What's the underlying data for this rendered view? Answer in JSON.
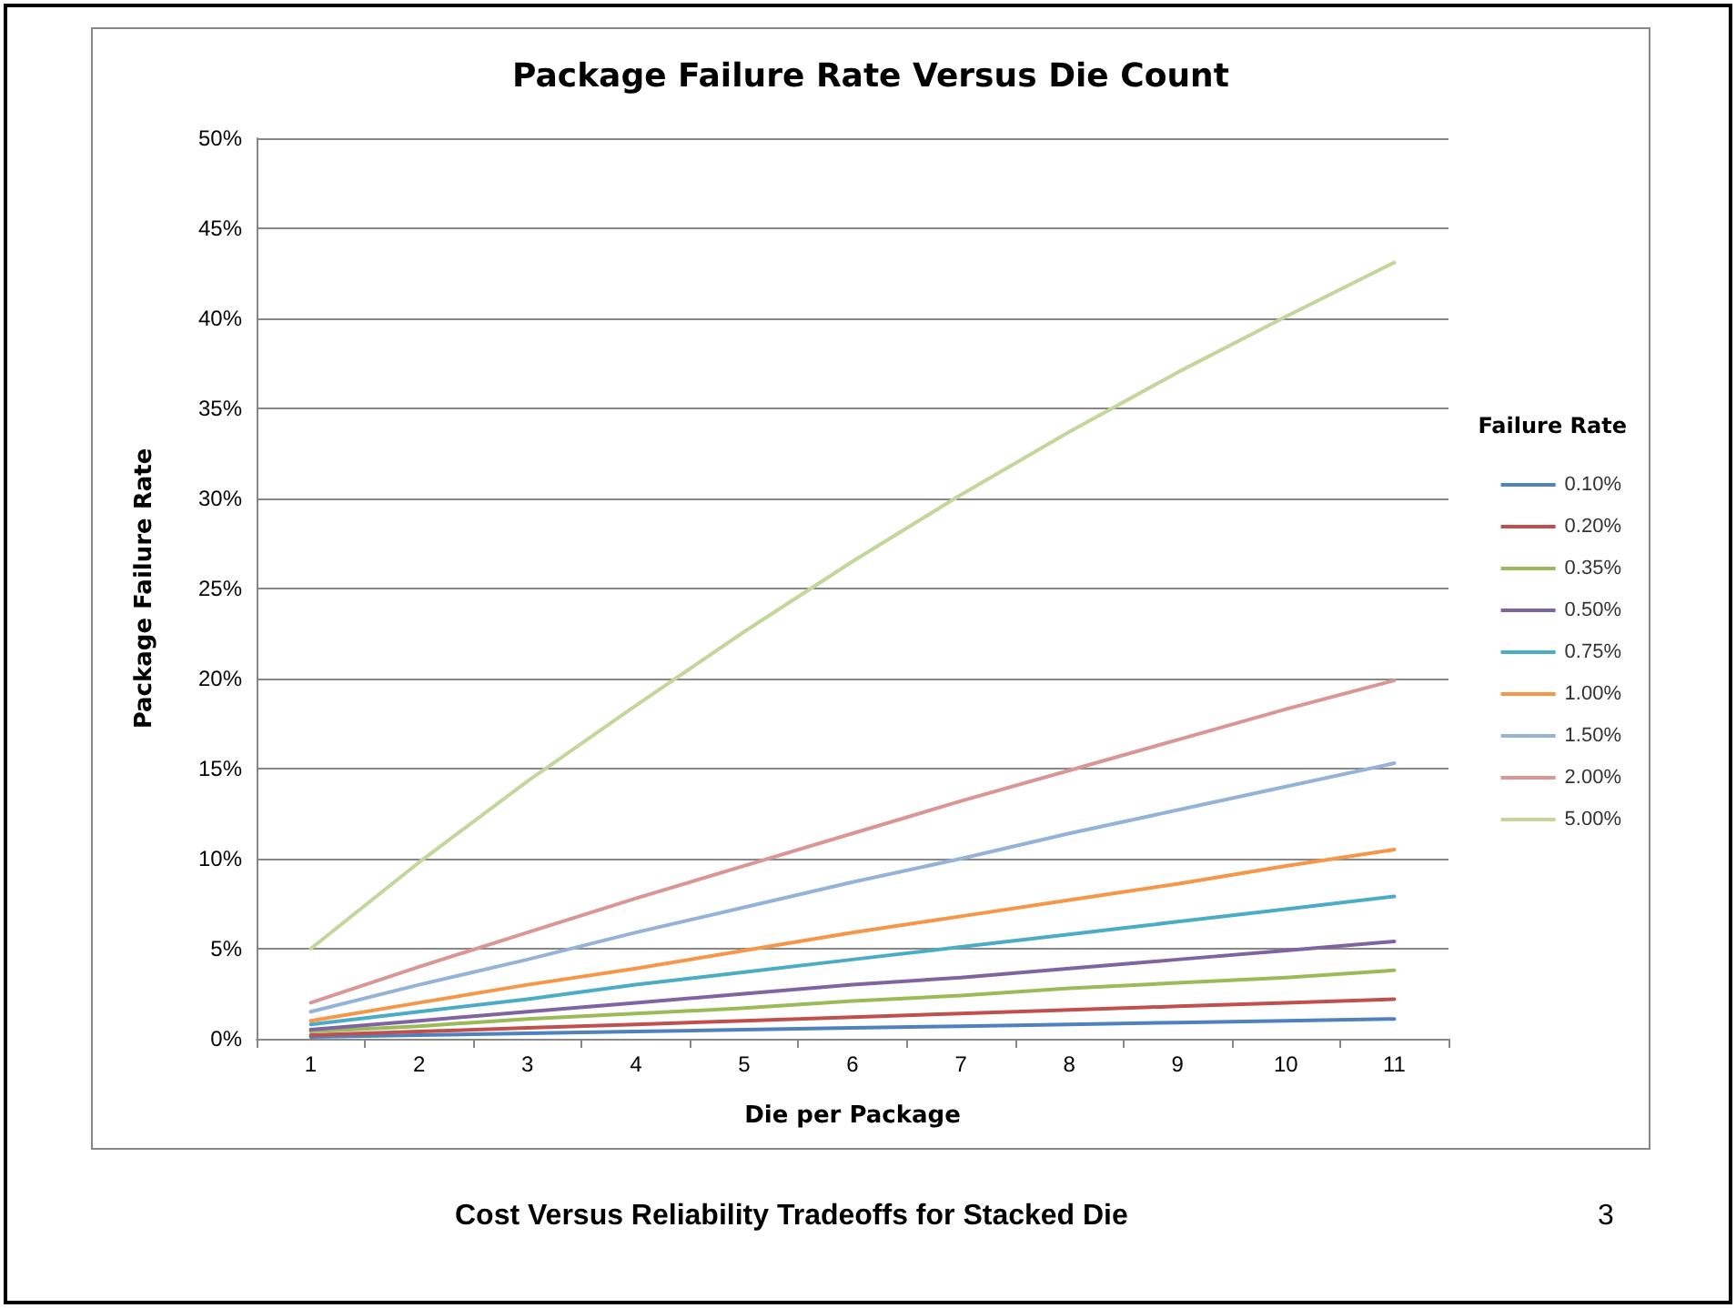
{
  "chart_data": {
    "type": "line",
    "title": "Package Failure Rate Versus Die Count",
    "xlabel": "Die per Package",
    "ylabel": "Package Failure Rate",
    "legend_title": "Failure Rate",
    "annotations": [
      "Cost Versus Reliability Tradeoffs for Stacked Die",
      "3"
    ],
    "categories": [
      "1",
      "2",
      "3",
      "4",
      "5",
      "6",
      "7",
      "8",
      "9",
      "10",
      "11"
    ],
    "series": [
      {
        "name": "0.10%",
        "color": "#4f81bd",
        "values": [
          0.1,
          0.2,
          0.3,
          0.4,
          0.5,
          0.6,
          0.7,
          0.8,
          0.9,
          1.0,
          1.1
        ]
      },
      {
        "name": "0.20%",
        "color": "#c0504d",
        "values": [
          0.2,
          0.4,
          0.6,
          0.8,
          1.0,
          1.2,
          1.4,
          1.6,
          1.8,
          2.0,
          2.2
        ]
      },
      {
        "name": "0.35%",
        "color": "#9bbb59",
        "values": [
          0.4,
          0.7,
          1.1,
          1.4,
          1.7,
          2.1,
          2.4,
          2.8,
          3.1,
          3.4,
          3.8
        ]
      },
      {
        "name": "0.50%",
        "color": "#8064a2",
        "values": [
          0.5,
          1.0,
          1.5,
          2.0,
          2.5,
          3.0,
          3.4,
          3.9,
          4.4,
          4.9,
          5.4
        ]
      },
      {
        "name": "0.75%",
        "color": "#4bacc6",
        "values": [
          0.8,
          1.5,
          2.2,
          3.0,
          3.7,
          4.4,
          5.1,
          5.8,
          6.5,
          7.2,
          7.9
        ]
      },
      {
        "name": "1.00%",
        "color": "#f79646",
        "values": [
          1.0,
          2.0,
          3.0,
          3.9,
          4.9,
          5.9,
          6.8,
          7.7,
          8.6,
          9.6,
          10.5
        ]
      },
      {
        "name": "1.50%",
        "color": "#95b3d7",
        "values": [
          1.5,
          3.0,
          4.4,
          5.9,
          7.3,
          8.7,
          10.0,
          11.4,
          12.7,
          14.0,
          15.3
        ]
      },
      {
        "name": "2.00%",
        "color": "#d99694",
        "values": [
          2.0,
          4.0,
          5.9,
          7.8,
          9.6,
          11.4,
          13.2,
          14.9,
          16.6,
          18.3,
          19.9
        ]
      },
      {
        "name": "5.00%",
        "color": "#c3d69b",
        "values": [
          5.0,
          9.8,
          14.3,
          18.5,
          22.6,
          26.5,
          30.2,
          33.7,
          37.0,
          40.1,
          43.1
        ]
      }
    ],
    "ylim": [
      0,
      50
    ],
    "yticks": [
      {
        "value": 0,
        "label": "0%"
      },
      {
        "value": 5,
        "label": "5%"
      },
      {
        "value": 10,
        "label": "10%"
      },
      {
        "value": 15,
        "label": "15%"
      },
      {
        "value": 20,
        "label": "20%"
      },
      {
        "value": 25,
        "label": "25%"
      },
      {
        "value": 30,
        "label": "30%"
      },
      {
        "value": 35,
        "label": "35%"
      },
      {
        "value": 40,
        "label": "40%"
      },
      {
        "value": 45,
        "label": "45%"
      },
      {
        "value": 50,
        "label": "50%"
      }
    ],
    "grid": "y",
    "legend": "right",
    "marker": "none",
    "line_style": "solid"
  }
}
